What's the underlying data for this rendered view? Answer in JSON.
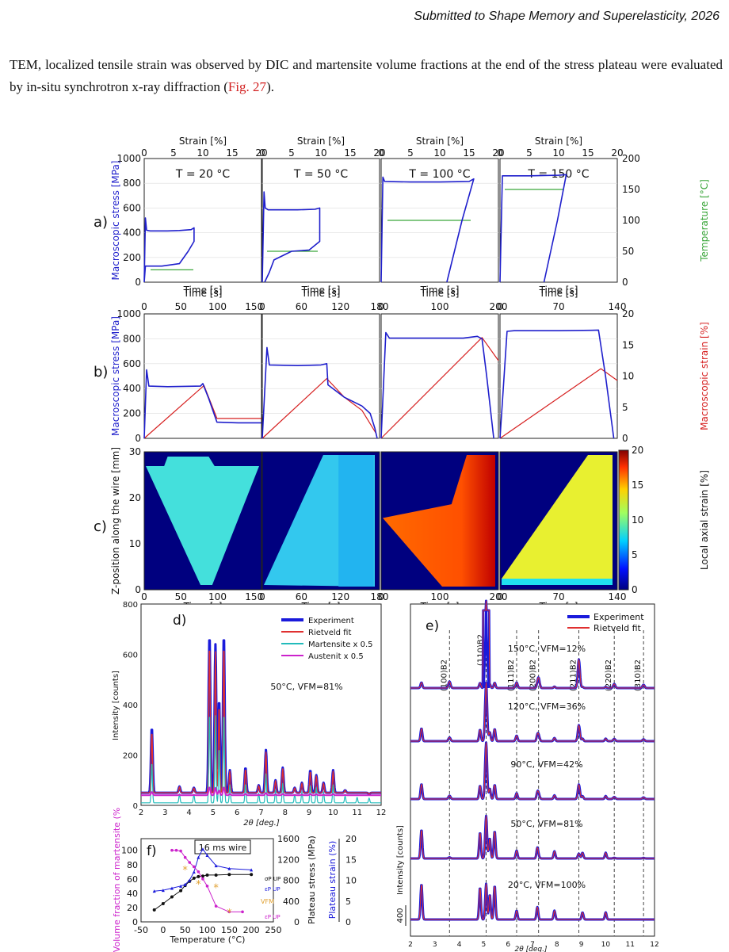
{
  "header": {
    "text": "Submitted to Shape Memory and Superelasticity, 2026"
  },
  "paragraph": {
    "part1": "TEM, localized tensile strain was observed by DIC and martensite volume fractions at the end of the stress plateau were evaluated by in-situ synchrotron x-ray diffraction (",
    "ref": "Fig. 27",
    "part2": ")."
  },
  "colors": {
    "stress": "#1f1fcc",
    "temperature": "#3aa63a",
    "strain": "#d62020",
    "experiment": "#1a1adb",
    "rietveld": "#e03030",
    "martensite": "#22bbbb",
    "austenite": "#cc22cc",
    "vfm": "#e0a030"
  },
  "figure": {
    "row_labels": [
      "a)",
      "b)",
      "c)"
    ],
    "temperatures": [
      "T = 20 °C",
      "T = 50 °C",
      "T = 100 °C",
      "T = 150 °C"
    ],
    "row_a": {
      "top_axis_label": "Strain [%]",
      "strain_ticks": [
        "0",
        "5",
        "10",
        "15",
        "20"
      ],
      "bottom_axis_label": "Time [s]",
      "y_left_label": "Macroscopic stress [MPa]",
      "y_left_ticks": [
        "0",
        "200",
        "400",
        "600",
        "800",
        "1000"
      ],
      "y_right_label": "Temperature [°C]",
      "y_right_ticks": [
        "0",
        "50",
        "100",
        "150",
        "200"
      ]
    },
    "row_b": {
      "top_axis_label": "Time [s]",
      "time_ticks": [
        [
          "0",
          "50",
          "100",
          "150"
        ],
        [
          "0",
          "60",
          "120",
          "180"
        ],
        [
          "0",
          "100",
          "200"
        ],
        [
          "0",
          "70",
          "140"
        ]
      ],
      "y_left_label": "Macroscopic stress [MPa]",
      "y_left_ticks": [
        "0",
        "200",
        "400",
        "600",
        "800",
        "1000"
      ],
      "y_right_label": "Macroscopic strain [%]",
      "y_right_ticks": [
        "0",
        "5",
        "10",
        "15",
        "20"
      ]
    },
    "row_c": {
      "x_label": "Time [s]",
      "time_ticks": [
        [
          "0",
          "50",
          "100",
          "150"
        ],
        [
          "0",
          "60",
          "120",
          "180"
        ],
        [
          "0",
          "100",
          "200"
        ],
        [
          "0",
          "70",
          "140"
        ]
      ],
      "y_label": "Z-position along the wire [mm]",
      "y_ticks": [
        "0",
        "10",
        "20",
        "30"
      ],
      "colorbar_label": "Local axial strain [%]",
      "colorbar_ticks": [
        "0",
        "5",
        "10",
        "15",
        "20"
      ]
    },
    "panel_d": {
      "label": "d)",
      "legend": [
        "Experiment",
        "Rietveld fit",
        "Martensite x 0.5",
        "Austenit x 0.5"
      ],
      "annotation": "50°C, VFM=81%",
      "y_label": "Intensity [counts]",
      "y_ticks": [
        "0",
        "200",
        "400",
        "600",
        "800"
      ],
      "x_label": "2θ [deg.]",
      "x_ticks": [
        "2",
        "3",
        "4",
        "5",
        "6",
        "7",
        "8",
        "9",
        "10",
        "11",
        "12"
      ]
    },
    "panel_e": {
      "label": "e)",
      "legend": [
        "Experiment",
        "Rietveld fit"
      ],
      "peaks": [
        "(100)B2",
        "(110)B2",
        "(111)B2",
        "(200)B2",
        "(211)B2",
        "(220)B2",
        "(310)B2"
      ],
      "patterns": [
        "150°C, VFM=12%",
        "120°C, VFM=36%",
        "90°C, VFM=42%",
        "50°C, VFM=81%",
        "20°C, VFM=100%"
      ],
      "y_label": "Intensity [counts]",
      "scale_bar": "400",
      "x_label": "2θ [deg.]",
      "x_ticks": [
        "2",
        "3",
        "4",
        "5",
        "6",
        "7",
        "8",
        "9",
        "10",
        "11",
        "12"
      ]
    },
    "panel_f": {
      "label": "f)",
      "box": "16 ms wire",
      "y_left_label": "Volume fraction of martensite (%",
      "y_left_ticks": [
        "0",
        "20",
        "40",
        "60",
        "80",
        "100"
      ],
      "y_mid_label": "Plateau stress (MPa)",
      "y_mid_ticks": [
        "0",
        "400",
        "800",
        "1200",
        "1600"
      ],
      "y_right_label": "Plateau strain (%)",
      "y_right_ticks": [
        "0",
        "5",
        "10",
        "15",
        "20"
      ],
      "x_label": "Temperature (°C)",
      "x_ticks": [
        "-50",
        "0",
        "50",
        "100",
        "150",
        "200",
        "250"
      ],
      "series_labels": [
        "σP UP",
        "εP UP",
        "VFM",
        "εP UP"
      ]
    }
  },
  "chart_data": [
    {
      "type": "line",
      "title": "T = 20 °C",
      "x": [
        0,
        0.2,
        0.4,
        1,
        2,
        4,
        6,
        8,
        8.5,
        8.5,
        7.5,
        6,
        3,
        0.2,
        0
      ],
      "y": [
        0,
        520,
        420,
        415,
        415,
        415,
        418,
        425,
        440,
        330,
        250,
        150,
        130,
        130,
        0
      ],
      "xlabel": "Strain [%]",
      "ylabel": "Macroscopic stress [MPa]"
    },
    {
      "type": "line",
      "title": "T = 50 °C",
      "x": [
        0,
        0.3,
        0.5,
        1,
        3,
        6,
        9,
        9.8,
        9.8,
        8,
        5,
        2,
        1.2,
        0.4
      ],
      "y": [
        0,
        730,
        600,
        585,
        585,
        585,
        590,
        600,
        330,
        260,
        250,
        180,
        80,
        0
      ],
      "xlabel": "Strain [%]",
      "ylabel": "Macroscopic stress [MPa]"
    },
    {
      "type": "line",
      "title": "T = 100 °C",
      "x": [
        0,
        0.3,
        0.6,
        5,
        10,
        15,
        15.8,
        13.8,
        11.2
      ],
      "y": [
        0,
        850,
        815,
        810,
        810,
        815,
        835,
        500,
        0
      ],
      "xlabel": "Strain [%]",
      "ylabel": "Macroscopic stress [MPa]"
    },
    {
      "type": "line",
      "title": "T = 150 °C",
      "x": [
        0,
        0.4,
        1,
        5,
        10,
        11.3,
        9.8,
        7.5
      ],
      "y": [
        0,
        860,
        860,
        860,
        865,
        870,
        500,
        0
      ],
      "xlabel": "Strain [%]",
      "ylabel": "Macroscopic stress [MPa]"
    },
    {
      "type": "line",
      "title": "f)",
      "series": [
        {
          "name": "σP UP",
          "x": [
            -20,
            0,
            20,
            40,
            50,
            60,
            70,
            80,
            90,
            100,
            120,
            150,
            200
          ],
          "y": [
            230,
            350,
            480,
            600,
            700,
            780,
            840,
            870,
            880,
            900,
            900,
            910,
            910
          ]
        },
        {
          "name": "εP UP",
          "x": [
            -20,
            0,
            20,
            40,
            50,
            60,
            70,
            80,
            90,
            100,
            120,
            150,
            200
          ],
          "y": [
            7.4,
            7.6,
            8.1,
            8.6,
            9,
            10,
            12,
            15.5,
            17.5,
            16,
            13.5,
            12.8,
            12.5
          ]
        },
        {
          "name": "VFM",
          "x": [
            20,
            30,
            40,
            50,
            60,
            70,
            80,
            90,
            100,
            120,
            150,
            180
          ],
          "y": [
            100,
            100,
            99,
            90,
            83,
            77,
            70,
            60,
            50,
            22,
            14,
            14
          ]
        }
      ],
      "xlabel": "Temperature (°C)",
      "ylabel": "Volume fraction of martensite (%"
    }
  ]
}
